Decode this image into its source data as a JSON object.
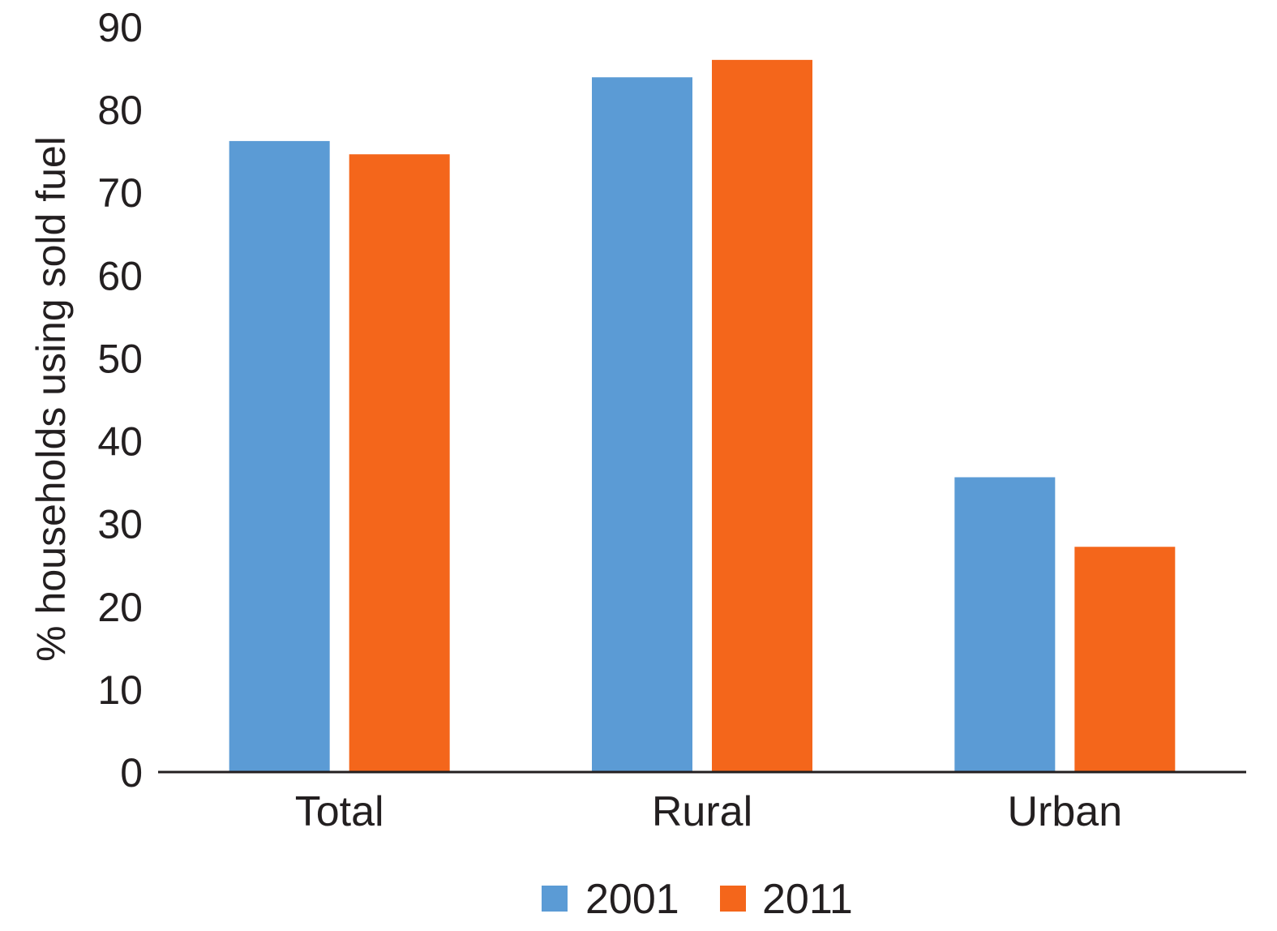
{
  "chart_data": {
    "type": "bar",
    "title": "",
    "xlabel": "",
    "ylabel": "% households using sold fuel",
    "ylim": [
      0,
      90
    ],
    "yticks": [
      0,
      10,
      20,
      30,
      40,
      50,
      60,
      70,
      80,
      90
    ],
    "grid": false,
    "legend_position": "bottom-center",
    "categories": [
      "Total",
      "Rural",
      "Urban"
    ],
    "series": [
      {
        "name": "2001",
        "color": "#5b9bd5",
        "values": [
          76.2,
          83.9,
          35.6
        ]
      },
      {
        "name": "2011",
        "color": "#f4661b",
        "values": [
          74.6,
          86.0,
          27.2
        ]
      }
    ]
  }
}
